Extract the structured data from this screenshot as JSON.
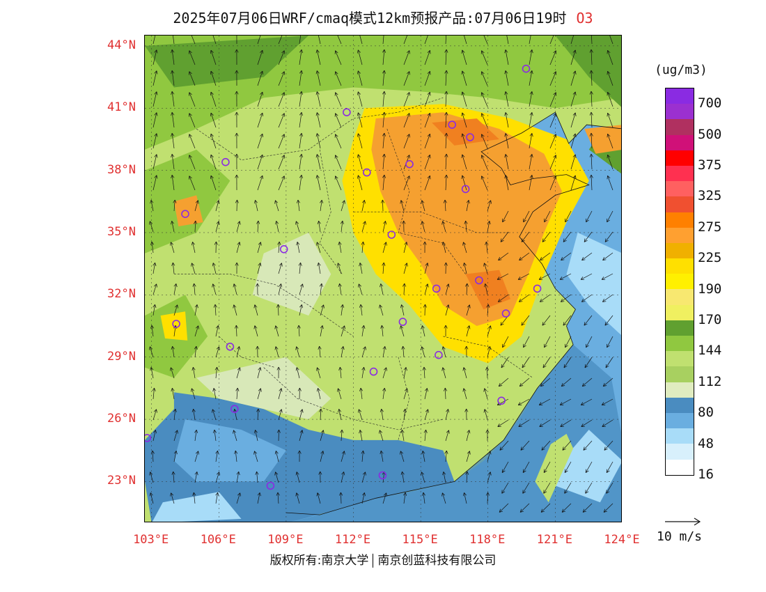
{
  "title": "2025年07月06日WRF/cmaq模式12km预报产品:07月06日19时",
  "pollutant": "O3",
  "unit": "(ug/m3)",
  "latitude_labels": [
    "44°N",
    "41°N",
    "38°N",
    "35°N",
    "32°N",
    "29°N",
    "26°N",
    "23°N"
  ],
  "longitude_labels": [
    "103°E",
    "106°E",
    "109°E",
    "112°E",
    "115°E",
    "118°E",
    "121°E",
    "124°E"
  ],
  "legend": {
    "labels": [
      "700",
      "500",
      "375",
      "325",
      "275",
      "225",
      "190",
      "170",
      "144",
      "112",
      "80",
      "48",
      "16"
    ],
    "colors": [
      "#8a2be2",
      "#9b30d0",
      "#b03060",
      "#d01078",
      "#ff0000",
      "#ff3050",
      "#ff6060",
      "#f05030",
      "#ff8000",
      "#ffa030",
      "#f0b000",
      "#ffe000",
      "#fff000",
      "#f8e870",
      "#f0f060",
      "#60a030",
      "#90c840",
      "#c0e070",
      "#a8d060",
      "#e0ecc0",
      "#4a8cc0",
      "#6aaee0",
      "#a8dcf8",
      "#d8f0fc",
      "#ffffff"
    ]
  },
  "vector_reference": "10 m/s",
  "copyright": {
    "left": "版权所有:南京大学",
    "right": "南京创蓝科技有限公司"
  },
  "map": {
    "lon_range": [
      102.7,
      124.0
    ],
    "lat_range": [
      21.0,
      44.5
    ],
    "colors": {
      "sea_deep": "#4a8cc0",
      "sea_mid": "#6aaee0",
      "sea_light": "#a8dcf8",
      "land_low": "#d8e8b8",
      "land_mid": "#c0e070",
      "land_high": "#90c840",
      "land_green": "#60a030",
      "yellow": "#ffe000",
      "orange": "#f5a030",
      "dark_orange": "#f08020",
      "station": "#8a2be2"
    },
    "stations": [
      {
        "lon": 119.7,
        "lat": 42.9
      },
      {
        "lon": 111.7,
        "lat": 40.8
      },
      {
        "lon": 116.4,
        "lat": 40.2
      },
      {
        "lon": 117.2,
        "lat": 39.6
      },
      {
        "lon": 106.3,
        "lat": 38.4
      },
      {
        "lon": 112.6,
        "lat": 37.9
      },
      {
        "lon": 114.5,
        "lat": 38.3
      },
      {
        "lon": 117.0,
        "lat": 37.1
      },
      {
        "lon": 104.5,
        "lat": 35.9
      },
      {
        "lon": 113.7,
        "lat": 34.9
      },
      {
        "lon": 108.9,
        "lat": 34.2
      },
      {
        "lon": 117.6,
        "lat": 32.7
      },
      {
        "lon": 115.7,
        "lat": 32.3
      },
      {
        "lon": 120.2,
        "lat": 32.3
      },
      {
        "lon": 118.8,
        "lat": 31.1
      },
      {
        "lon": 104.1,
        "lat": 30.6
      },
      {
        "lon": 114.2,
        "lat": 30.7
      },
      {
        "lon": 106.5,
        "lat": 29.5
      },
      {
        "lon": 115.8,
        "lat": 29.1
      },
      {
        "lon": 112.9,
        "lat": 28.3
      },
      {
        "lon": 118.6,
        "lat": 26.9
      },
      {
        "lon": 106.7,
        "lat": 26.5
      },
      {
        "lon": 102.8,
        "lat": 25.1
      },
      {
        "lon": 108.3,
        "lat": 22.8
      },
      {
        "lon": 113.3,
        "lat": 23.3
      }
    ]
  }
}
